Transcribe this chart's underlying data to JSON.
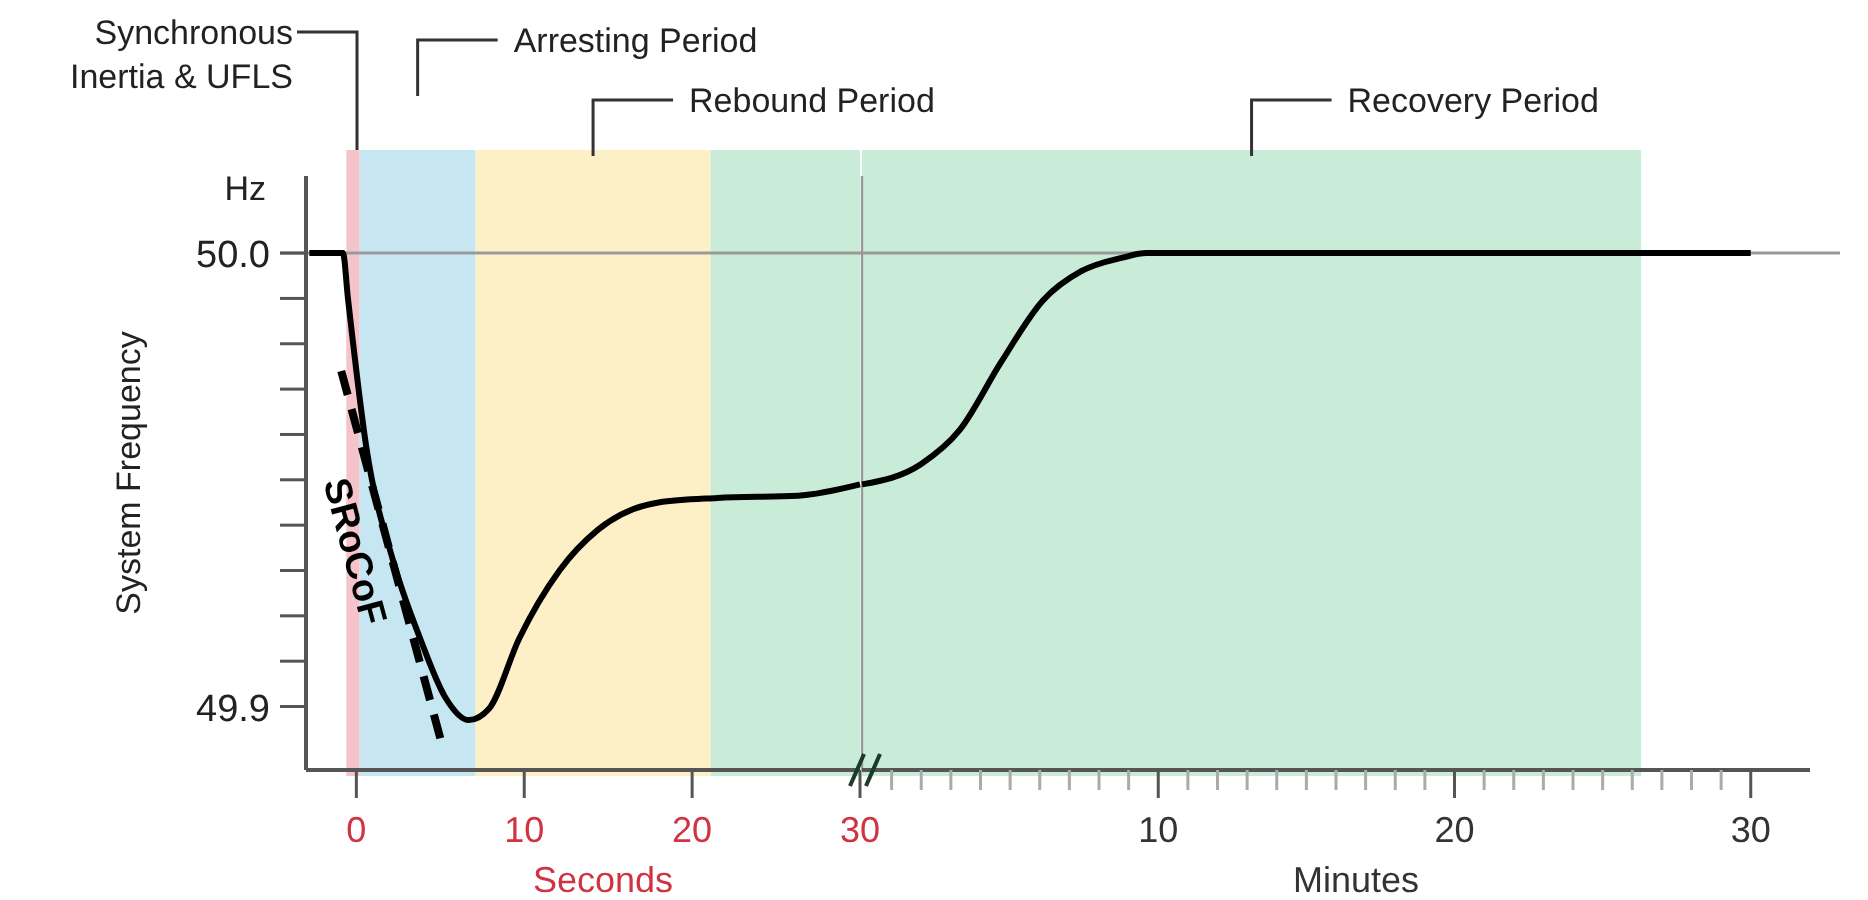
{
  "chart_data": [
    {
      "type": "line",
      "xlabel": "Seconds",
      "ylabel": "System Frequency",
      "annotations": [
        "Hz"
      ],
      "xlim": [
        -3,
        30
      ],
      "xticks": [
        0,
        10,
        20,
        30
      ],
      "ylim": [
        49.886,
        50.017
      ],
      "yticks": [
        49.9,
        {
          "value": 49.91,
          "label": null
        },
        {
          "value": 49.92,
          "label": null
        },
        {
          "value": 49.93,
          "label": null
        },
        {
          "value": 49.94,
          "label": null
        },
        {
          "value": 49.95,
          "label": null
        },
        {
          "value": 49.96,
          "label": null
        },
        {
          "value": 49.97,
          "label": null
        },
        {
          "value": 49.98,
          "label": null
        },
        {
          "value": 49.99,
          "label": null
        },
        {
          "value": 50,
          "label": "50.0"
        }
      ],
      "ref_lines": [
        {
          "axis": "y",
          "value": 50,
          "color": "#9a9a9a"
        }
      ],
      "bands": [
        {
          "axis": "x",
          "from": -0.6,
          "to": 0.2,
          "label": "Synchronous Inertia & UFLS",
          "color": "#f4c4ca"
        },
        {
          "axis": "x",
          "from": 0.2,
          "to": 7.1,
          "label": "Arresting Period",
          "color": "#c6e6f2"
        },
        {
          "axis": "x",
          "from": 7.1,
          "to": 21.1,
          "label": "Rebound Period",
          "color": "#fdefc6"
        },
        {
          "axis": "x",
          "from": 21.1,
          "to": 30,
          "label": null,
          "color": "#c8ecd8"
        }
      ],
      "series": [
        {
          "color": "#000000",
          "x": [
            -2.8,
            -0.8,
            -0.5,
            0.6,
            2.2,
            3.8,
            5.3,
            6.7,
            7.9,
            9.7,
            12.1,
            14.4,
            18,
            21.5,
            26.3,
            30
          ],
          "values": [
            50,
            50,
            49.99,
            49.957,
            49.932,
            49.915,
            49.902,
            49.897,
            49.8995,
            49.915,
            49.93,
            49.939,
            49.945,
            49.946,
            49.9465,
            49.949
          ]
        },
        {
          "name": "SRoCoF",
          "color": "#000000",
          "line_style": "dashed",
          "x": [
            -0.9,
            5.0
          ],
          "values": [
            49.974,
            49.893
          ]
        }
      ]
    },
    {
      "type": "line",
      "xlabel": "Minutes",
      "xlim": [
        0,
        32
      ],
      "tick_labels": "x",
      "xticks": [
        {
          "value": 1,
          "label": null
        },
        {
          "value": 2,
          "label": null
        },
        {
          "value": 3,
          "label": null
        },
        {
          "value": 4,
          "label": null
        },
        {
          "value": 5,
          "label": null
        },
        {
          "value": 6,
          "label": null
        },
        {
          "value": 7,
          "label": null
        },
        {
          "value": 8,
          "label": null
        },
        {
          "value": 9,
          "label": null
        },
        10,
        {
          "value": 11,
          "label": null
        },
        {
          "value": 12,
          "label": null
        },
        {
          "value": 13,
          "label": null
        },
        {
          "value": 14,
          "label": null
        },
        {
          "value": 15,
          "label": null
        },
        {
          "value": 16,
          "label": null
        },
        {
          "value": 17,
          "label": null
        },
        {
          "value": 18,
          "label": null
        },
        {
          "value": 19,
          "label": null
        },
        20,
        {
          "value": 21,
          "label": null
        },
        {
          "value": 22,
          "label": null
        },
        {
          "value": 23,
          "label": null
        },
        {
          "value": 24,
          "label": null
        },
        {
          "value": 25,
          "label": null
        },
        {
          "value": 26,
          "label": null
        },
        {
          "value": 27,
          "label": null
        },
        {
          "value": 28,
          "label": null
        },
        {
          "value": 29,
          "label": null
        },
        30
      ],
      "ylim": [
        49.886,
        50.017
      ],
      "ref_lines": [
        {
          "axis": "y",
          "value": 50,
          "color": "#9a9a9a"
        }
      ],
      "bands": [
        {
          "axis": "x",
          "from": 0,
          "to": 26.3,
          "label": "Recovery Period",
          "color": "#c8ecd8"
        }
      ],
      "series": [
        {
          "color": "#000000",
          "x": [
            0,
            2,
            3.3,
            4.7,
            6.1,
            7.4,
            8.8,
            9.6,
            30
          ],
          "values": [
            49.949,
            49.9535,
            49.961,
            49.976,
            49.9895,
            49.996,
            49.999,
            50,
            50
          ]
        }
      ]
    }
  ]
}
